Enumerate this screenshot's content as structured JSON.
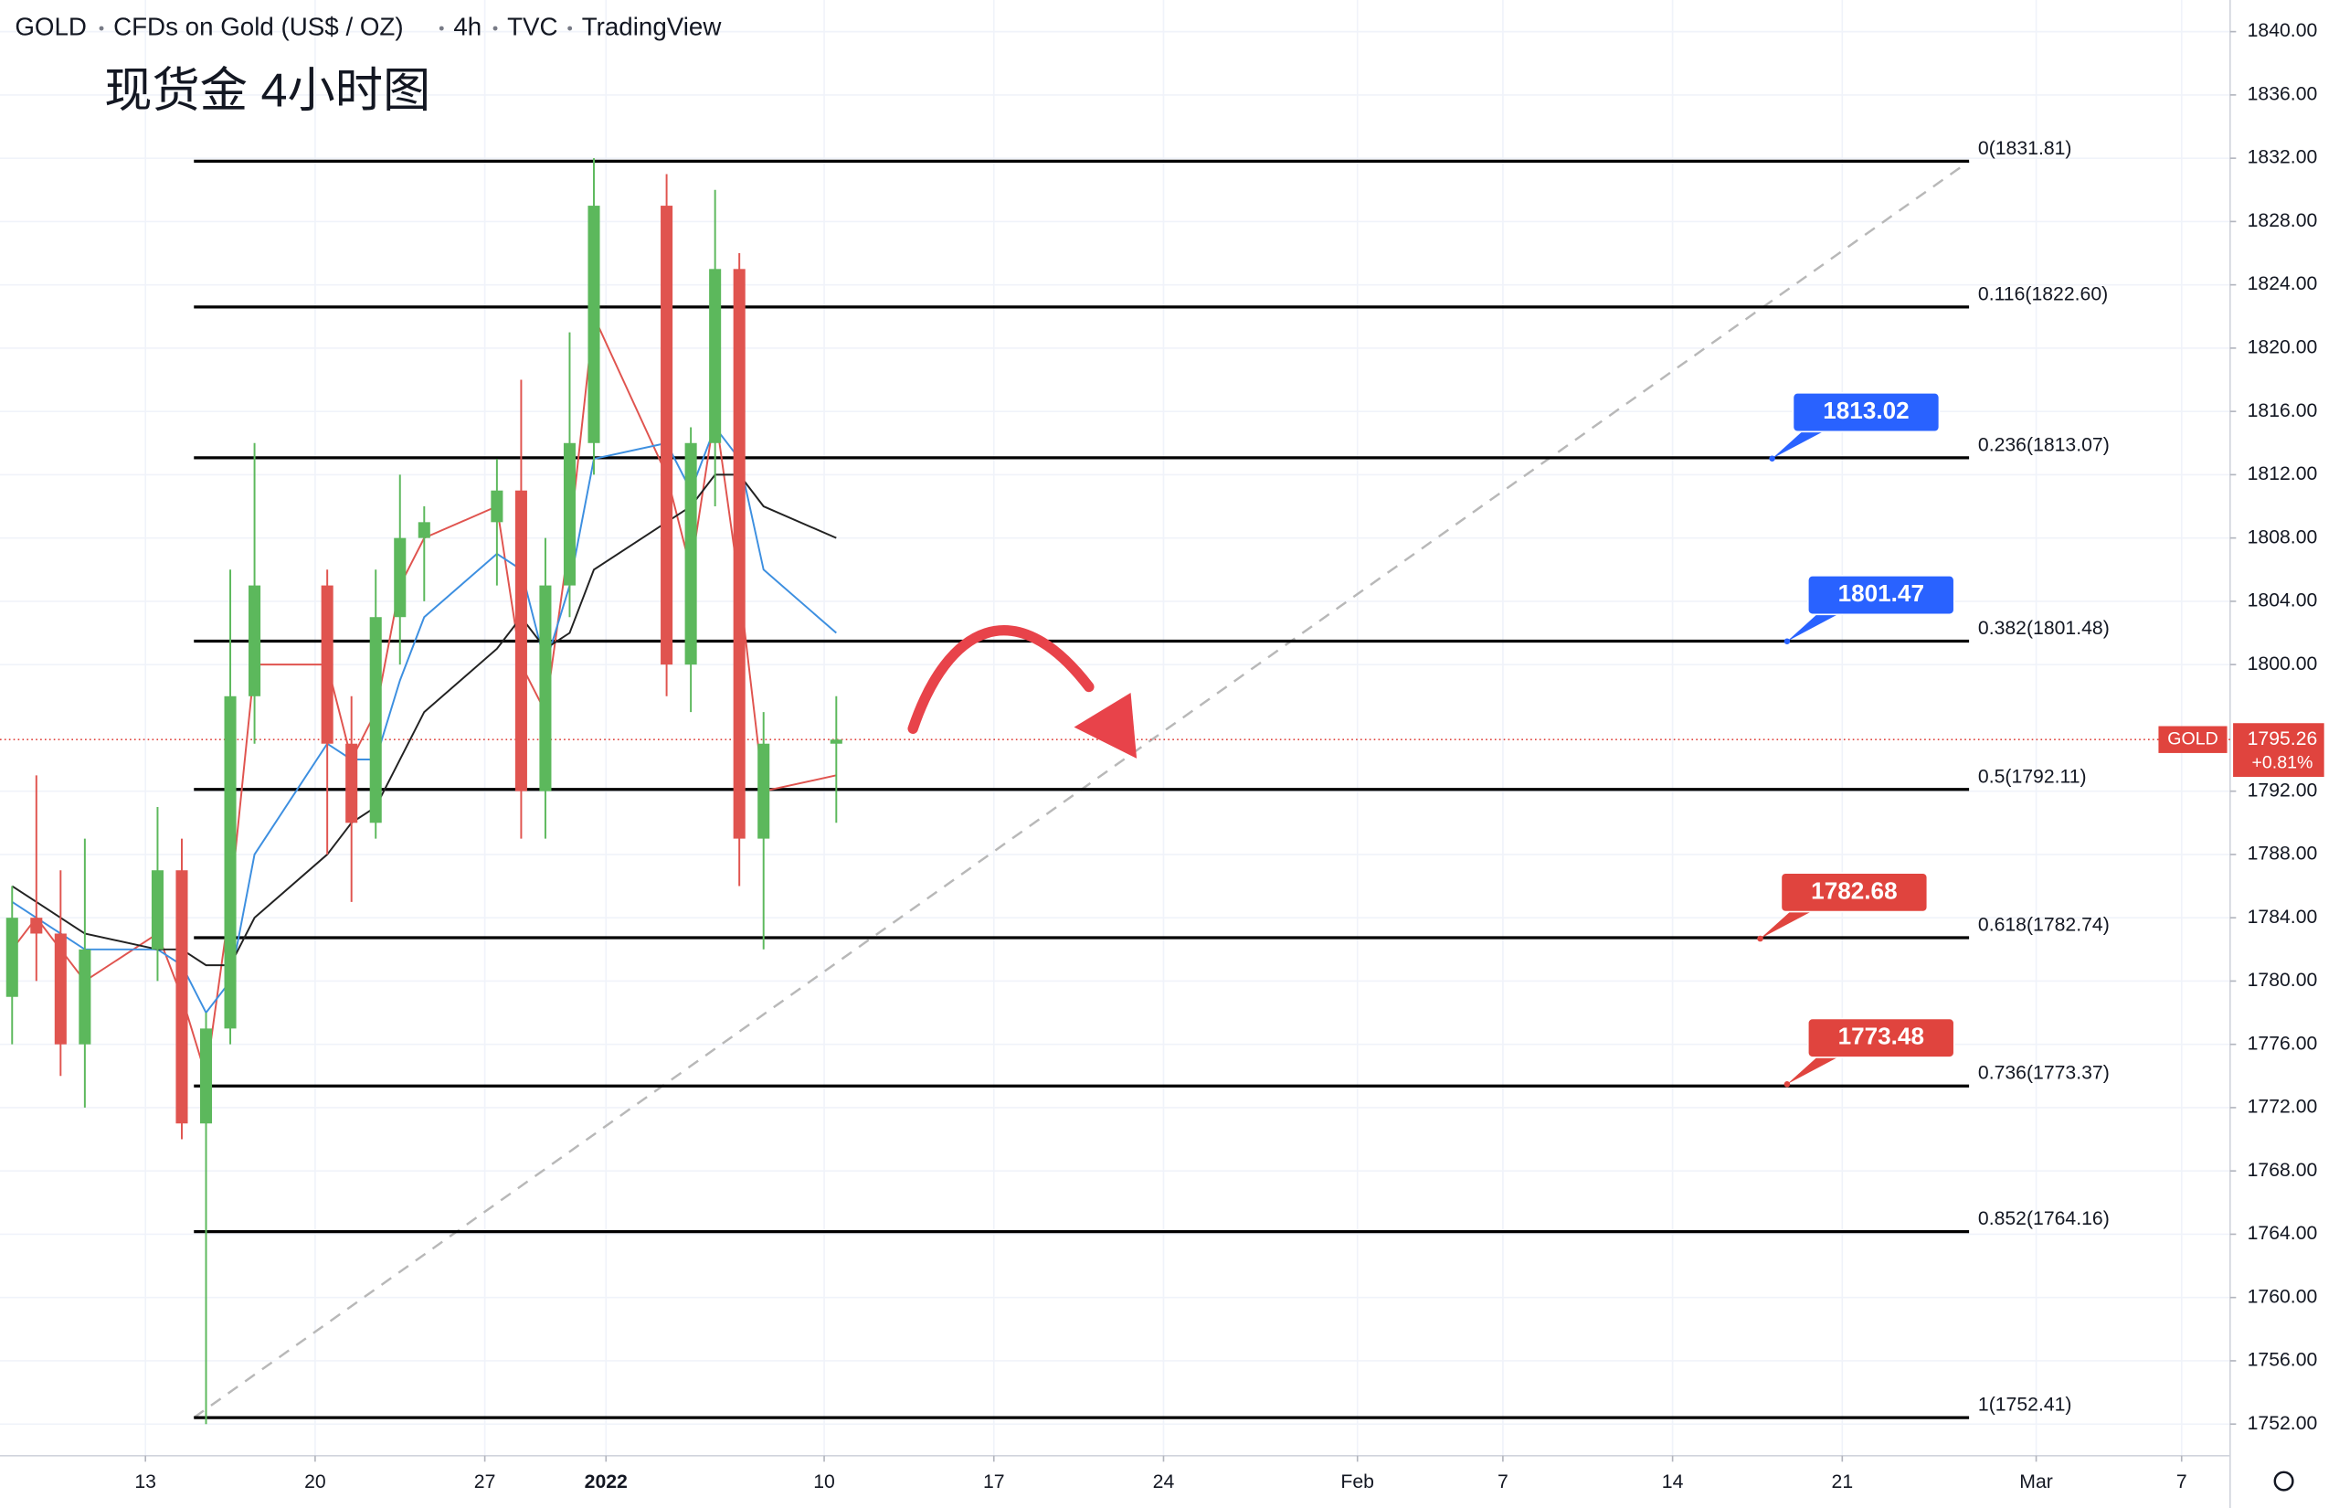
{
  "chart_data": {
    "type": "candlestick",
    "header": [
      "GOLD",
      "CFDs on Gold (US$ / OZ)",
      "4h",
      "TVC",
      "TradingView"
    ],
    "title": "现货金 4小时图",
    "x": [
      "2021-12-07",
      "2021-12-08",
      "2021-12-09",
      "2021-12-10",
      "2021-12-13",
      "2021-12-14",
      "2021-12-15",
      "2021-12-16",
      "2021-12-17",
      "2021-12-20",
      "2021-12-21",
      "2021-12-22",
      "2021-12-23",
      "2021-12-24",
      "2021-12-27",
      "2021-12-28",
      "2021-12-29",
      "2021-12-30",
      "2021-12-31",
      "2022-01-03",
      "2022-01-04",
      "2022-01-05",
      "2022-01-06",
      "2022-01-07",
      "2022-01-10"
    ],
    "open": [
      1779,
      1784,
      1783,
      1776,
      1782,
      1787,
      1771,
      1777,
      1798,
      1805,
      1795,
      1790,
      1803,
      1808,
      1809,
      1811,
      1792,
      1805,
      1814,
      1829,
      1800,
      1814,
      1825,
      1789,
      1795
    ],
    "high": [
      1786,
      1793,
      1787,
      1789,
      1791,
      1789,
      1778,
      1806,
      1814,
      1806,
      1798,
      1806,
      1812,
      1810,
      1813,
      1818,
      1808,
      1821,
      1832,
      1831,
      1815,
      1830,
      1826,
      1797,
      1798
    ],
    "low": [
      1776,
      1780,
      1774,
      1772,
      1780,
      1770,
      1752,
      1776,
      1795,
      1788,
      1785,
      1789,
      1800,
      1804,
      1805,
      1789,
      1789,
      1803,
      1812,
      1798,
      1797,
      1810,
      1786,
      1782,
      1790
    ],
    "close": [
      1784,
      1783,
      1776,
      1782,
      1787,
      1771,
      1777,
      1798,
      1805,
      1795,
      1790,
      1803,
      1808,
      1809,
      1811,
      1792,
      1805,
      1814,
      1829,
      1800,
      1814,
      1825,
      1789,
      1795,
      1795.26
    ],
    "up_color": "#5cb85c",
    "down_color": "#e0544f",
    "moving_averages": [
      {
        "color": "#e0544f",
        "values": [
          1782,
          1784,
          1782,
          1780,
          1783,
          1779,
          1774,
          1785,
          1800,
          1800,
          1794,
          1797,
          1805,
          1808,
          1810,
          1800,
          1797,
          1808,
          1822,
          1812,
          1806,
          1816,
          1805,
          1792,
          1793
        ]
      },
      {
        "color": "#3d8fe0",
        "values": [
          1785,
          1784,
          1783,
          1782,
          1782,
          1781,
          1778,
          1780,
          1788,
          1795,
          1794,
          1794,
          1799,
          1803,
          1807,
          1806,
          1800,
          1805,
          1813,
          1814,
          1811,
          1815,
          1813,
          1806,
          1802
        ]
      },
      {
        "color": "#222222",
        "values": [
          1786,
          1785,
          1784,
          1783,
          1782,
          1782,
          1781,
          1781,
          1784,
          1788,
          1790,
          1791,
          1794,
          1797,
          1801,
          1803,
          1801,
          1802,
          1806,
          1809,
          1810,
          1812,
          1812,
          1810,
          1808
        ]
      }
    ],
    "xlim": [
      "2021-12-07",
      "2022-03-09"
    ],
    "xticks": [
      {
        "value": "2021-12-13",
        "label": "13"
      },
      {
        "value": "2021-12-20",
        "label": "20"
      },
      {
        "value": "2021-12-27",
        "label": "27"
      },
      {
        "value": "2022-01-01",
        "label": "2022"
      },
      {
        "value": "2022-01-10",
        "label": "10"
      },
      {
        "value": "2022-01-17",
        "label": "17"
      },
      {
        "value": "2022-01-24",
        "label": "24"
      },
      {
        "value": "2022-02-01",
        "label": "Feb"
      },
      {
        "value": "2022-02-07",
        "label": "7"
      },
      {
        "value": "2022-02-14",
        "label": "14"
      },
      {
        "value": "2022-02-21",
        "label": "21"
      },
      {
        "value": "2022-03-01",
        "label": "Mar"
      },
      {
        "value": "2022-03-07",
        "label": "7"
      }
    ],
    "ylim": [
      1750,
      1842
    ],
    "yticks": [
      {
        "value": 1752,
        "label": "1752.00"
      },
      {
        "value": 1756,
        "label": "1756.00"
      },
      {
        "value": 1760,
        "label": "1760.00"
      },
      {
        "value": 1764,
        "label": "1764.00"
      },
      {
        "value": 1768,
        "label": "1768.00"
      },
      {
        "value": 1772,
        "label": "1772.00"
      },
      {
        "value": 1776,
        "label": "1776.00"
      },
      {
        "value": 1780,
        "label": "1780.00"
      },
      {
        "value": 1784,
        "label": "1784.00"
      },
      {
        "value": 1788,
        "label": "1788.00"
      },
      {
        "value": 1792,
        "label": "1792.00"
      },
      {
        "value": 1800,
        "label": "1800.00"
      },
      {
        "value": 1804,
        "label": "1804.00"
      },
      {
        "value": 1808,
        "label": "1808.00"
      },
      {
        "value": 1812,
        "label": "1812.00"
      },
      {
        "value": 1816,
        "label": "1816.00"
      },
      {
        "value": 1820,
        "label": "1820.00"
      },
      {
        "value": 1824,
        "label": "1824.00"
      },
      {
        "value": 1828,
        "label": "1828.00"
      },
      {
        "value": 1832,
        "label": "1832.00"
      },
      {
        "value": 1836,
        "label": "1836.00"
      },
      {
        "value": 1840,
        "label": "1840.00"
      }
    ],
    "grid": true,
    "fib_levels": [
      {
        "value": 1831.81,
        "label": "0(1831.81)"
      },
      {
        "value": 1822.6,
        "label": "0.116(1822.60)"
      },
      {
        "value": 1813.07,
        "label": "0.236(1813.07)"
      },
      {
        "value": 1801.48,
        "label": "0.382(1801.48)"
      },
      {
        "value": 1792.11,
        "label": "0.5(1792.11)"
      },
      {
        "value": 1782.74,
        "label": "0.618(1782.74)"
      },
      {
        "value": 1773.37,
        "label": "0.736(1773.37)"
      },
      {
        "value": 1764.16,
        "label": "0.852(1764.16)"
      },
      {
        "value": 1752.41,
        "label": "1(1752.41)"
      }
    ],
    "price_callouts": [
      {
        "value": 1813.02,
        "color": "#2962ff"
      },
      {
        "value": 1801.47,
        "color": "#2962ff"
      },
      {
        "value": 1782.68,
        "color": "#e0443e"
      },
      {
        "value": 1773.48,
        "color": "#e0443e"
      }
    ],
    "last_price": {
      "symbol": "GOLD",
      "value": 1795.26,
      "change": "+0.81%",
      "color": "#e0443e"
    }
  }
}
